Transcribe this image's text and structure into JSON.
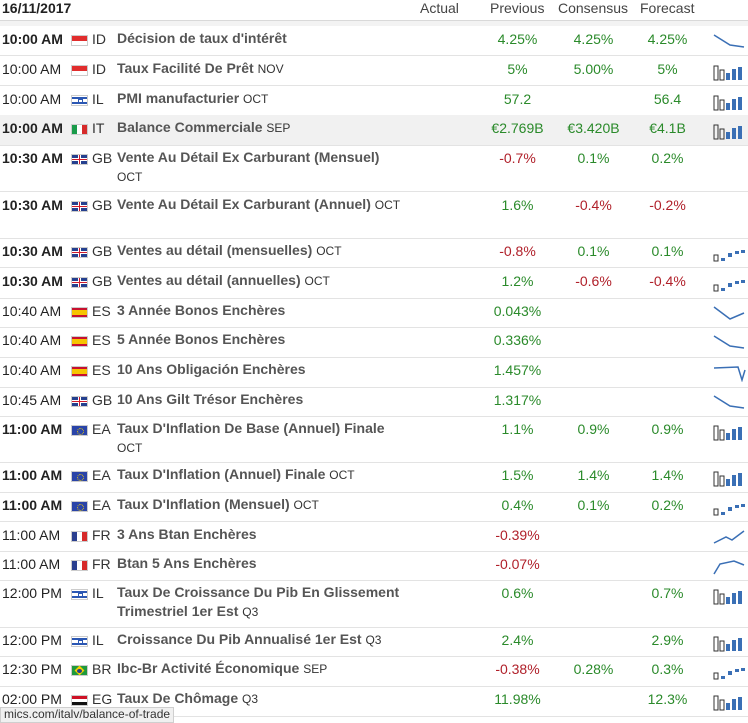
{
  "header": {
    "date": "16/11/2017",
    "col_actual": "Actual",
    "col_previous": "Previous",
    "col_consensus": "Consensus",
    "col_forecast": "Forecast"
  },
  "rows": [
    {
      "time": "10:00 AM",
      "bold": true,
      "flag": "ID",
      "cc": "ID",
      "event": "Décision de taux d'intérêt",
      "ref": "",
      "previous": "4.25%",
      "consensus": "4.25%",
      "forecast": "4.25%",
      "spark": "line-down",
      "alt": false,
      "p": "pos",
      "c": "pos",
      "f": "pos"
    },
    {
      "time": "10:00 AM",
      "bold": false,
      "flag": "ID",
      "cc": "ID",
      "event": "Taux Facilité De Prêt",
      "ref": "NOV",
      "previous": "5%",
      "consensus": "5.00%",
      "forecast": "5%",
      "spark": "bars",
      "alt": false,
      "p": "pos",
      "c": "pos",
      "f": "pos"
    },
    {
      "time": "10:00 AM",
      "bold": false,
      "flag": "IL",
      "cc": "IL",
      "event": "PMI manufacturier",
      "ref": "OCT",
      "previous": "57.2",
      "consensus": "",
      "forecast": "56.4",
      "spark": "bars",
      "alt": false,
      "p": "pos",
      "c": "pos",
      "f": "pos"
    },
    {
      "time": "10:00 AM",
      "bold": true,
      "flag": "IT",
      "cc": "IT",
      "event": "Balance Commerciale",
      "ref": "SEP",
      "previous": "€2.769B",
      "consensus": "€3.420B",
      "forecast": "€4.1B",
      "spark": "bars",
      "alt": true,
      "p": "pos",
      "c": "pos",
      "f": "pos"
    },
    {
      "time": "10:30 AM",
      "bold": true,
      "flag": "GB",
      "cc": "GB",
      "event": "Vente Au Détail Ex Carburant (Mensuel)",
      "ref": "OCT",
      "previous": "-0.7%",
      "consensus": "0.1%",
      "forecast": "0.2%",
      "spark": "none",
      "alt": false,
      "p": "neg",
      "c": "pos",
      "f": "pos"
    },
    {
      "time": "10:30 AM",
      "bold": true,
      "flag": "GB",
      "cc": "GB",
      "event": "Vente Au Détail Ex Carburant (Annuel)",
      "ref": "OCT",
      "previous": "1.6%",
      "consensus": "-0.4%",
      "forecast": "-0.2%",
      "spark": "none",
      "alt": false,
      "p": "pos",
      "c": "neg",
      "f": "neg"
    },
    {
      "time": "10:30 AM",
      "bold": true,
      "flag": "GB",
      "cc": "GB",
      "event": "Ventes au détail (mensuelles)",
      "ref": "OCT",
      "previous": "-0.8%",
      "consensus": "0.1%",
      "forecast": "0.1%",
      "spark": "steps",
      "alt": false,
      "p": "neg",
      "c": "pos",
      "f": "pos"
    },
    {
      "time": "10:30 AM",
      "bold": true,
      "flag": "GB",
      "cc": "GB",
      "event": "Ventes au détail (annuelles)",
      "ref": "OCT",
      "previous": "1.2%",
      "consensus": "-0.6%",
      "forecast": "-0.4%",
      "spark": "steps",
      "alt": false,
      "p": "pos",
      "c": "neg",
      "f": "neg"
    },
    {
      "time": "10:40 AM",
      "bold": false,
      "flag": "ES",
      "cc": "ES",
      "event": "3 Année Bonos Enchères",
      "ref": "",
      "previous": "0.043%",
      "consensus": "",
      "forecast": "",
      "spark": "line-v",
      "alt": false,
      "p": "pos",
      "c": "pos",
      "f": "pos"
    },
    {
      "time": "10:40 AM",
      "bold": false,
      "flag": "ES",
      "cc": "ES",
      "event": "5 Année Bonos Enchères",
      "ref": "",
      "previous": "0.336%",
      "consensus": "",
      "forecast": "",
      "spark": "line-down",
      "alt": false,
      "p": "pos",
      "c": "pos",
      "f": "pos"
    },
    {
      "time": "10:40 AM",
      "bold": false,
      "flag": "ES",
      "cc": "ES",
      "event": "10 Ans Obligación Enchères",
      "ref": "",
      "previous": "1.457%",
      "consensus": "",
      "forecast": "",
      "spark": "line-drop",
      "alt": false,
      "p": "pos",
      "c": "pos",
      "f": "pos"
    },
    {
      "time": "10:45 AM",
      "bold": false,
      "flag": "GB",
      "cc": "GB",
      "event": "10 Ans Gilt Trésor Enchères",
      "ref": "",
      "previous": "1.317%",
      "consensus": "",
      "forecast": "",
      "spark": "line-down",
      "alt": false,
      "p": "pos",
      "c": "pos",
      "f": "pos"
    },
    {
      "time": "11:00 AM",
      "bold": true,
      "flag": "EA",
      "cc": "EA",
      "event": "Taux D'Inflation De Base (Annuel) Finale",
      "ref": "OCT",
      "previous": "1.1%",
      "consensus": "0.9%",
      "forecast": "0.9%",
      "spark": "bars",
      "alt": false,
      "p": "pos",
      "c": "pos",
      "f": "pos"
    },
    {
      "time": "11:00 AM",
      "bold": true,
      "flag": "EA",
      "cc": "EA",
      "event": "Taux D'Inflation (Annuel) Finale",
      "ref": "OCT",
      "previous": "1.5%",
      "consensus": "1.4%",
      "forecast": "1.4%",
      "spark": "bars",
      "alt": false,
      "p": "pos",
      "c": "pos",
      "f": "pos"
    },
    {
      "time": "11:00 AM",
      "bold": true,
      "flag": "EA",
      "cc": "EA",
      "event": "Taux D'Inflation (Mensuel)",
      "ref": "OCT",
      "previous": "0.4%",
      "consensus": "0.1%",
      "forecast": "0.2%",
      "spark": "steps",
      "alt": false,
      "p": "pos",
      "c": "pos",
      "f": "pos"
    },
    {
      "time": "11:00 AM",
      "bold": false,
      "flag": "FR",
      "cc": "FR",
      "event": "3 Ans Btan Enchères",
      "ref": "",
      "previous": "-0.39%",
      "consensus": "",
      "forecast": "",
      "spark": "line-up",
      "alt": false,
      "p": "neg",
      "c": "pos",
      "f": "pos"
    },
    {
      "time": "11:00 AM",
      "bold": false,
      "flag": "FR",
      "cc": "FR",
      "event": "Btan 5 Ans Enchères",
      "ref": "",
      "previous": "-0.07%",
      "consensus": "",
      "forecast": "",
      "spark": "line-rise",
      "alt": false,
      "p": "neg",
      "c": "pos",
      "f": "pos"
    },
    {
      "time": "12:00 PM",
      "bold": false,
      "flag": "IL",
      "cc": "IL",
      "event": "Taux De Croissance Du Pib En Glissement Trimestriel 1er Est",
      "ref": "Q3",
      "previous": "0.6%",
      "consensus": "",
      "forecast": "0.7%",
      "spark": "bars",
      "alt": false,
      "p": "pos",
      "c": "pos",
      "f": "pos"
    },
    {
      "time": "12:00 PM",
      "bold": false,
      "flag": "IL",
      "cc": "IL",
      "event": "Croissance Du Pib Annualisé 1er Est",
      "ref": "Q3",
      "previous": "2.4%",
      "consensus": "",
      "forecast": "2.9%",
      "spark": "bars",
      "alt": false,
      "p": "pos",
      "c": "pos",
      "f": "pos"
    },
    {
      "time": "12:30 PM",
      "bold": false,
      "flag": "BR",
      "cc": "BR",
      "event": "Ibc-Br Activité Économique",
      "ref": "SEP",
      "previous": "-0.38%",
      "consensus": "0.28%",
      "forecast": "0.3%",
      "spark": "steps",
      "alt": false,
      "p": "neg",
      "c": "pos",
      "f": "pos"
    },
    {
      "time": "02:00 PM",
      "bold": false,
      "flag": "EG",
      "cc": "EG",
      "event": "Taux De Chômage",
      "ref": "Q3",
      "previous": "11.98%",
      "consensus": "",
      "forecast": "12.3%",
      "spark": "bars",
      "alt": false,
      "p": "pos",
      "c": "pos",
      "f": "pos"
    }
  ],
  "status_url": "mics.com/italv/balance-of-trade"
}
